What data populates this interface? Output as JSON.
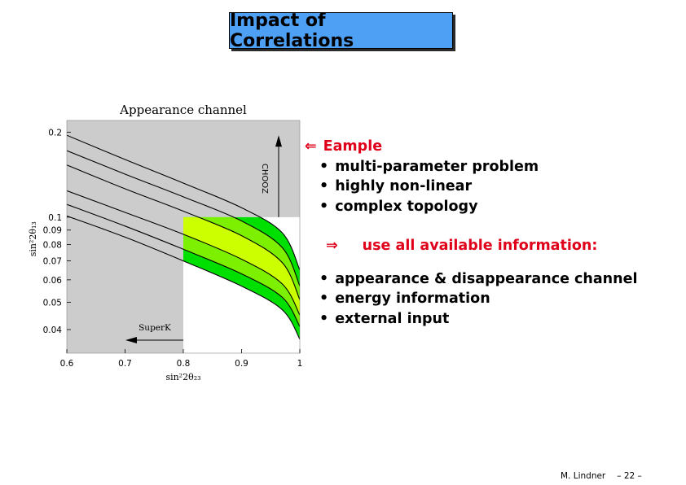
{
  "slide": {
    "title": "Impact of Correlations",
    "footer_author": "M. Lindner",
    "footer_page": "– 22 –"
  },
  "text": {
    "lead_arrow": "⇐",
    "lead": "Eample",
    "bullet_glyph": "•",
    "bullets_top": [
      "multi-parameter problem",
      "highly non-linear",
      "complex topology"
    ],
    "implies_arrow": "⇒",
    "implies": "use all available information:",
    "bullets_bottom": [
      "appearance & disappearance channel",
      "energy information",
      "external input"
    ]
  },
  "colors": {
    "title_bg": "#4ea0f4",
    "accent_red": "#e0001a",
    "excluded_gray": "#cccccc",
    "contour_outer": "#00e000",
    "contour_inner": "#ccff00"
  },
  "chart_data": {
    "type": "contour",
    "title": "Appearance channel",
    "xlabel": "sin²2θ₂₃",
    "ylabel": "sin²2θ₁₃",
    "xlim": [
      0.6,
      1.0
    ],
    "ylim": [
      0.033,
      0.22
    ],
    "y_scale": "log",
    "x_ticks": [
      "0.6",
      "0.7",
      "0.8",
      "0.9",
      "1"
    ],
    "y_ticks": [
      "0.04",
      "0.05",
      "0.06",
      "0.07",
      "0.08",
      "0.09",
      "0.1",
      "0.2"
    ],
    "annotations": {
      "chooz": "CHOOZ",
      "superk": "SuperK",
      "chooz_limit_sin2_2theta13": 0.1,
      "superk_limit_sin2_2theta23": 0.8
    },
    "curves": [
      {
        "x": [
          0.6,
          0.7,
          0.8,
          0.9,
          0.97,
          1.0
        ],
        "y": [
          0.195,
          0.16,
          0.132,
          0.108,
          0.088,
          0.065
        ]
      },
      {
        "x": [
          0.6,
          0.7,
          0.8,
          0.9,
          0.97,
          1.0
        ],
        "y": [
          0.172,
          0.142,
          0.118,
          0.097,
          0.078,
          0.057
        ]
      },
      {
        "x": [
          0.6,
          0.7,
          0.8,
          0.9,
          0.97,
          1.0
        ],
        "y": [
          0.153,
          0.126,
          0.105,
          0.086,
          0.069,
          0.051
        ]
      },
      {
        "x": [
          0.6,
          0.7,
          0.8,
          0.9,
          0.97,
          1.0
        ],
        "y": [
          0.124,
          0.104,
          0.087,
          0.071,
          0.058,
          0.045
        ]
      },
      {
        "x": [
          0.6,
          0.7,
          0.8,
          0.9,
          0.97,
          1.0
        ],
        "y": [
          0.111,
          0.093,
          0.077,
          0.063,
          0.052,
          0.041
        ]
      },
      {
        "x": [
          0.6,
          0.7,
          0.8,
          0.9,
          0.97,
          1.0
        ],
        "y": [
          0.101,
          0.085,
          0.07,
          0.057,
          0.047,
          0.037
        ]
      }
    ]
  }
}
